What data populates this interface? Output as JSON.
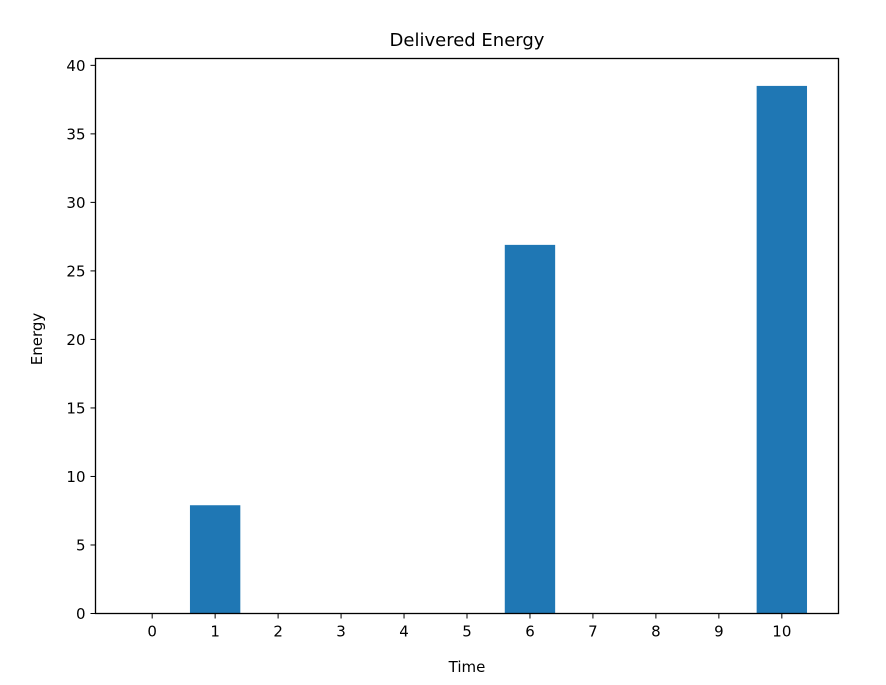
{
  "chart_data": {
    "type": "bar",
    "title": "Delivered Energy",
    "xlabel": "Time",
    "ylabel": "Energy",
    "categories": [
      "0",
      "1",
      "2",
      "3",
      "4",
      "5",
      "6",
      "7",
      "8",
      "9",
      "10"
    ],
    "values": [
      0,
      7.9,
      0,
      0,
      0,
      0,
      26.9,
      0,
      0,
      0,
      38.5
    ],
    "xlim": [
      -0.9,
      10.9
    ],
    "ylim": [
      0,
      40.5
    ],
    "yticks": [
      "0",
      "5",
      "10",
      "15",
      "20",
      "25",
      "30",
      "35",
      "40"
    ],
    "grid": false,
    "legend": "none",
    "bar_color": "#1f77b4"
  }
}
